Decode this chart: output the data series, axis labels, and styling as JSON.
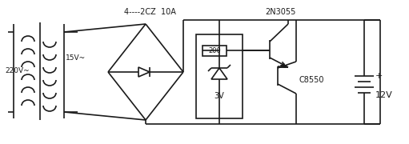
{
  "bg_color": "#ffffff",
  "line_color": "#1a1a1a",
  "text_color": "#1a1a1a",
  "lw": 1.2,
  "labels": {
    "v220": "220V~",
    "v15": "15V~",
    "diode_bridge": "4----2CZ  10A",
    "transistor_npn": "2N3055",
    "resistor": "200",
    "zener": "3V",
    "transistor_pnp": "C8550",
    "battery_v": "12V",
    "plus": "+"
  }
}
